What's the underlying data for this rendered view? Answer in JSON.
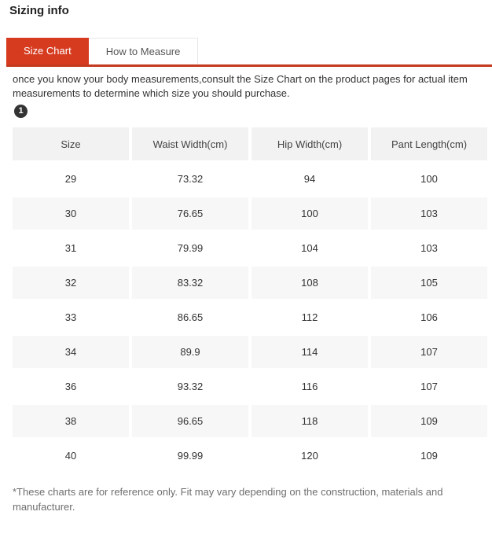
{
  "page": {
    "title": "Sizing info"
  },
  "tabs": [
    {
      "label": "Size Chart",
      "active": true
    },
    {
      "label": "How to Measure",
      "active": false
    }
  ],
  "intro": {
    "text": "once you know your body measurements,consult the Size Chart on the product pages for actual item measurements to determine which size you should purchase.",
    "badge": "1"
  },
  "chart_data": {
    "type": "table",
    "columns": [
      "Size",
      "Waist Width(cm)",
      "Hip Width(cm)",
      "Pant Length(cm)"
    ],
    "rows": [
      [
        "29",
        "73.32",
        "94",
        "100"
      ],
      [
        "30",
        "76.65",
        "100",
        "103"
      ],
      [
        "31",
        "79.99",
        "104",
        "103"
      ],
      [
        "32",
        "83.32",
        "108",
        "105"
      ],
      [
        "33",
        "86.65",
        "112",
        "106"
      ],
      [
        "34",
        "89.9",
        "114",
        "107"
      ],
      [
        "36",
        "93.32",
        "116",
        "107"
      ],
      [
        "38",
        "96.65",
        "118",
        "109"
      ],
      [
        "40",
        "99.99",
        "120",
        "109"
      ]
    ]
  },
  "footer": {
    "note": "*These charts are for reference only. Fit may vary depending on the construction, materials and manufacturer."
  },
  "colors": {
    "accent": "#d63b20",
    "accent_line": "#c43a1e",
    "header_bg": "#f2f2f2",
    "stripe_bg": "#f7f7f7"
  }
}
